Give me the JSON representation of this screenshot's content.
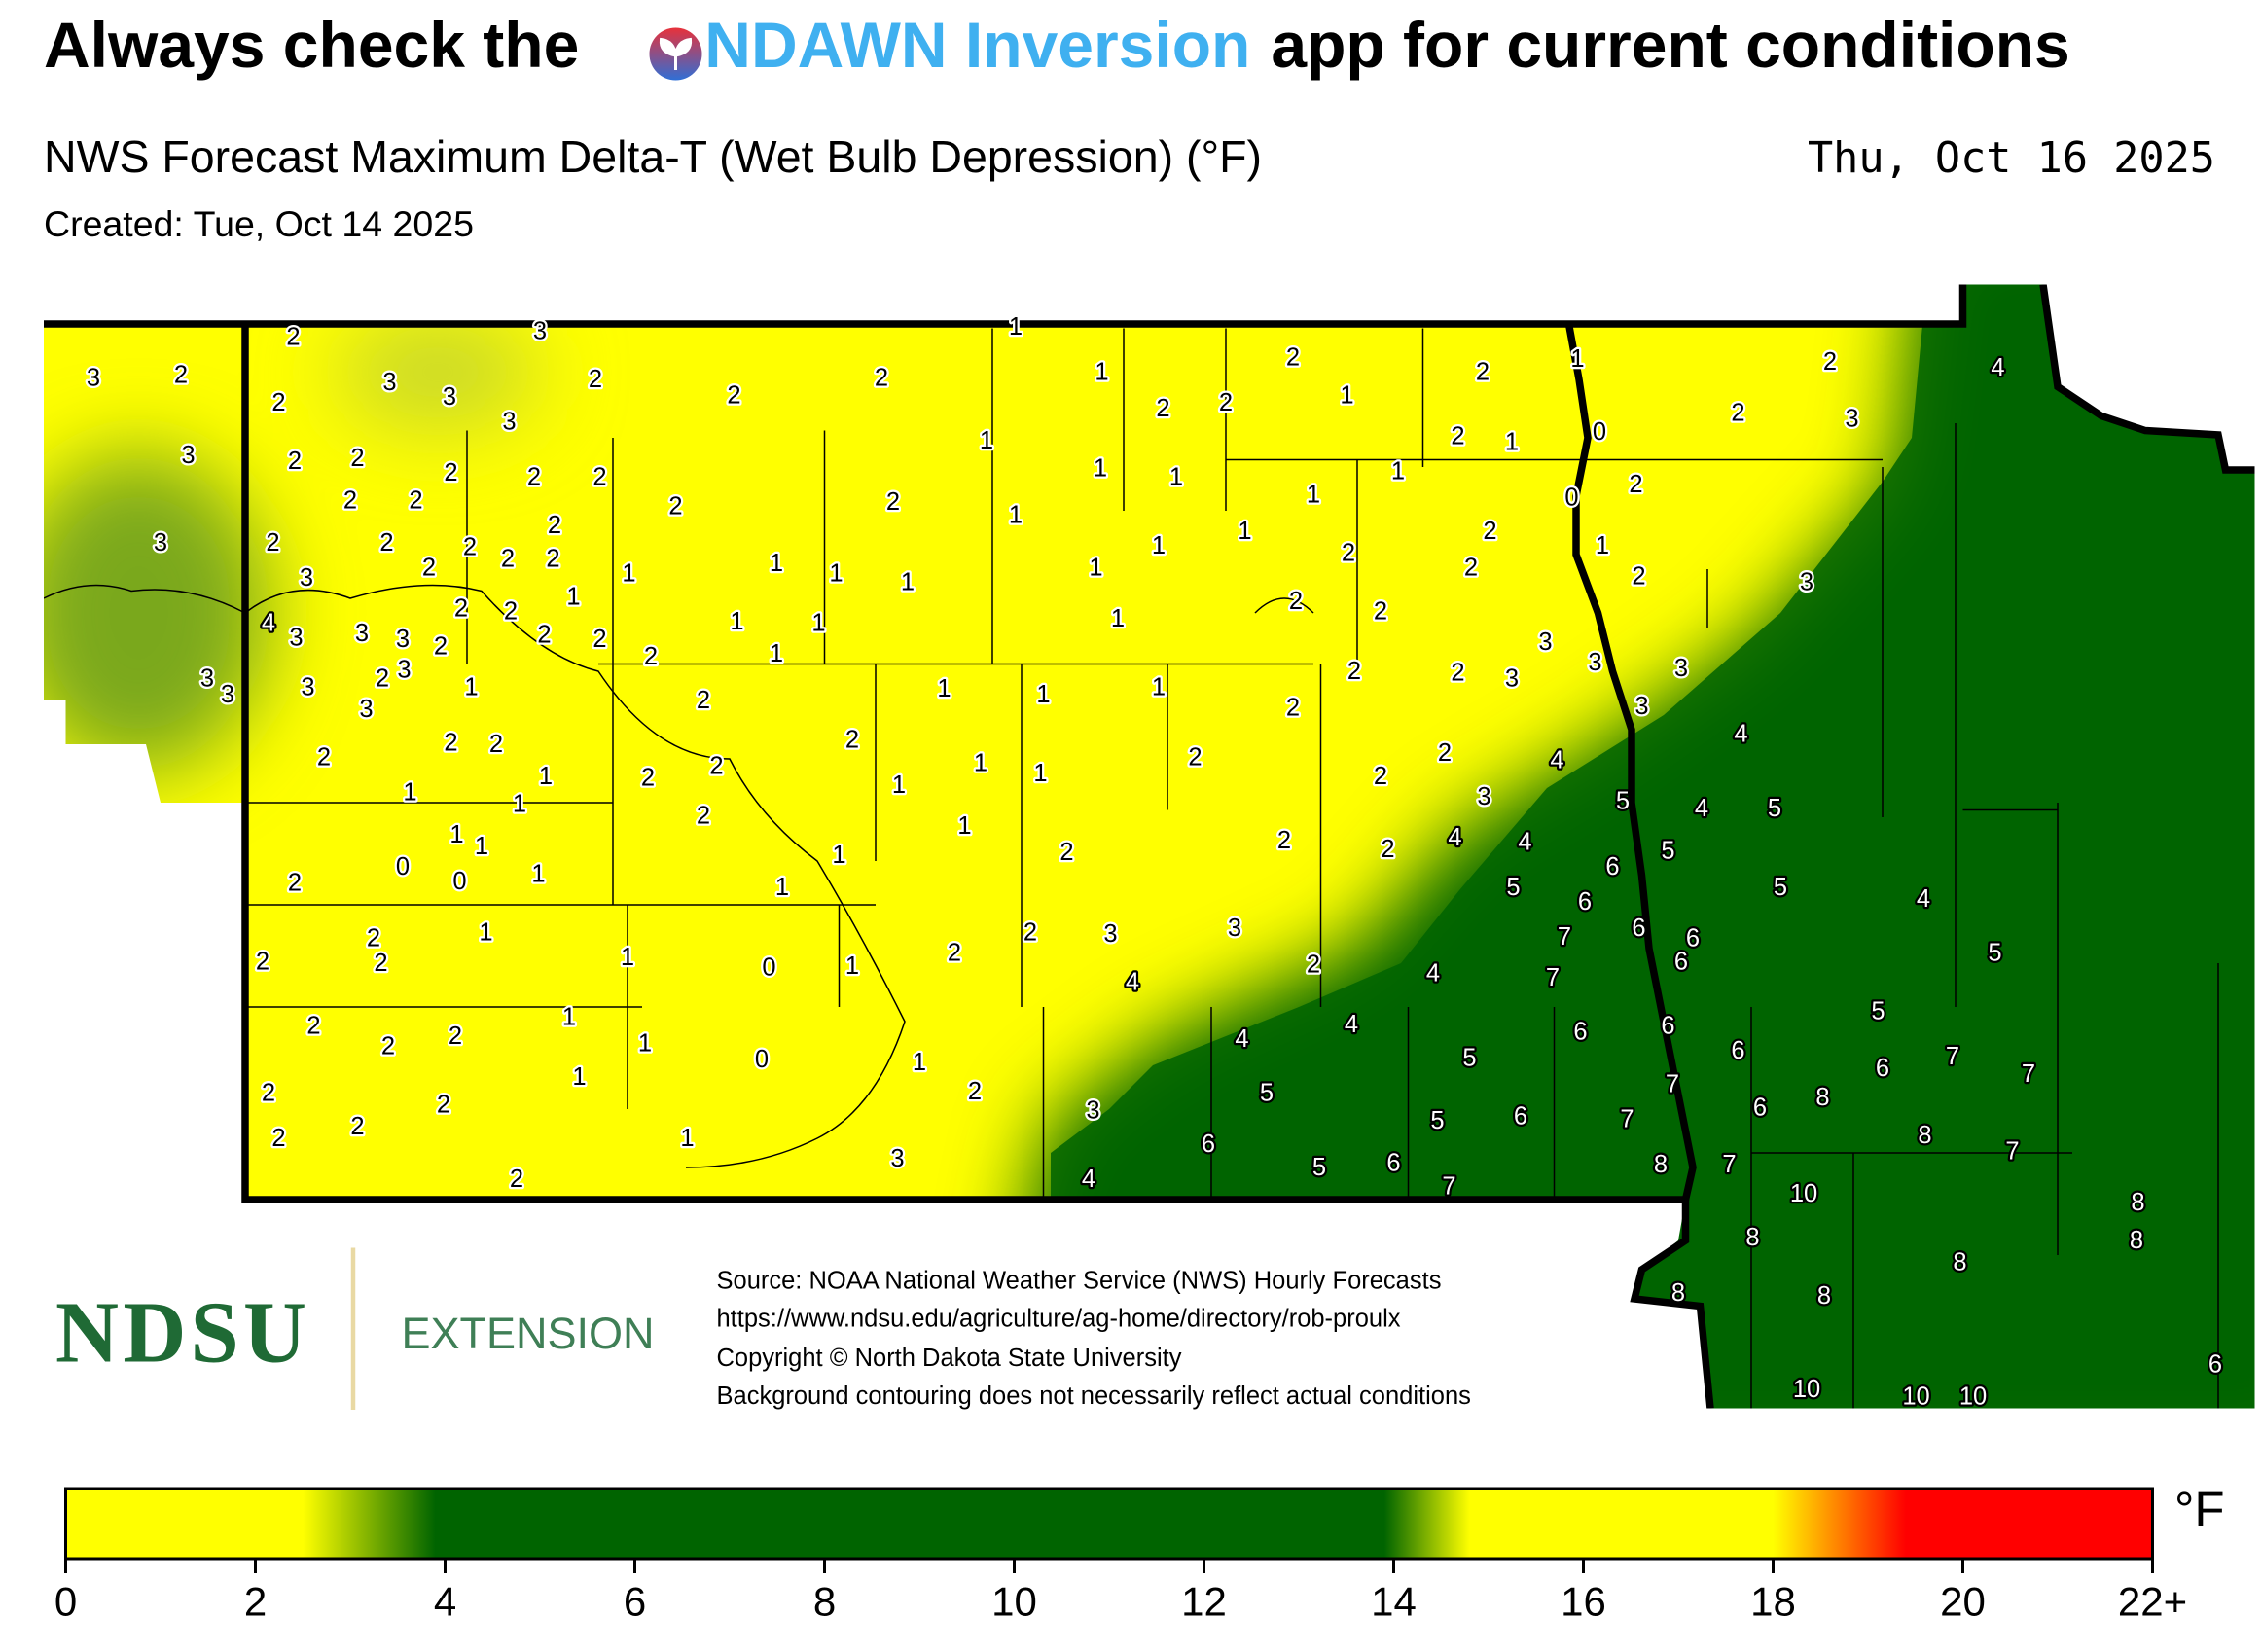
{
  "header": {
    "title_before": "Always check the",
    "title_link": "NDAWN Inversion",
    "title_after": "app for current conditions",
    "subtitle": "NWS Forecast Maximum Delta-T (Wet Bulb Depression) (°F)",
    "valid_date": "Thu, Oct 16 2025",
    "created": "Created: Tue, Oct 14 2025"
  },
  "map": {
    "stations": [
      2,
      3,
      1,
      3,
      2,
      2,
      3,
      3,
      3,
      2,
      2,
      2,
      1,
      2,
      1,
      2,
      2,
      4,
      2,
      2,
      1,
      2,
      3,
      0,
      2,
      1,
      1,
      3,
      2,
      2,
      2,
      2,
      2,
      2,
      2,
      2,
      2,
      1,
      1,
      1,
      1,
      2,
      0,
      2,
      1,
      1,
      2,
      3,
      2,
      2,
      2,
      2,
      2,
      1,
      2,
      1,
      2,
      3,
      1,
      1,
      1,
      1,
      1,
      2,
      2,
      3,
      1,
      2,
      2,
      2,
      2,
      4,
      3,
      3,
      3,
      2,
      2,
      2,
      2,
      1,
      1,
      1,
      1,
      3,
      3,
      3,
      3,
      3,
      3,
      2,
      3,
      1,
      3,
      2,
      1,
      1,
      1,
      2,
      2,
      3,
      2,
      3,
      4,
      2,
      2,
      2,
      2,
      1,
      2,
      2,
      1,
      1,
      2,
      2,
      2,
      4,
      1,
      1,
      1,
      3,
      5,
      4,
      5,
      2,
      1,
      1,
      1,
      1,
      2,
      2,
      2,
      4,
      4,
      5,
      0,
      0,
      1,
      2,
      1,
      6,
      5,
      5,
      4,
      6,
      1,
      2,
      3,
      3,
      7,
      6,
      6,
      6,
      2,
      2,
      2,
      1,
      0,
      1,
      2,
      2,
      4,
      7,
      5,
      4,
      1,
      2,
      2,
      2,
      1,
      4,
      4,
      5,
      5,
      6,
      6,
      6,
      7,
      6,
      7,
      1,
      0,
      1,
      2,
      2,
      2,
      5,
      7,
      8,
      6,
      3,
      5,
      6,
      7,
      2,
      2,
      1,
      6,
      8,
      7,
      3,
      4,
      5,
      6,
      8,
      7,
      7,
      2,
      10,
      8,
      8,
      8,
      8,
      8,
      8,
      6,
      10,
      10,
      10
    ]
  },
  "source": [
    "Source: NOAA National Weather Service (NWS) Hourly Forecasts",
    "https://www.ndsu.edu/agriculture/ag-home/directory/rob-proulx",
    "Copyright © North Dakota State University",
    "Background contouring does not necessarily reflect actual conditions"
  ],
  "logo": {
    "name": "NDSU",
    "unit": "EXTENSION"
  },
  "colorbar": {
    "unit": "°F",
    "lim": [
      0,
      22
    ],
    "ticks": [
      0,
      2,
      4,
      6,
      8,
      10,
      12,
      14,
      16,
      18,
      20,
      {
        "value": 22,
        "label": "22+"
      }
    ],
    "stops": [
      {
        "value": 0,
        "color": "#ffff00"
      },
      {
        "value": 2.5,
        "color": "#ffff00"
      },
      {
        "value": 3.9,
        "color": "#006400"
      },
      {
        "value": 13.9,
        "color": "#006400"
      },
      {
        "value": 14.8,
        "color": "#ffff00"
      },
      {
        "value": 18,
        "color": "#ffff00"
      },
      {
        "value": 19.4,
        "color": "#ff0000"
      },
      {
        "value": 22,
        "color": "#ff0000"
      }
    ]
  }
}
